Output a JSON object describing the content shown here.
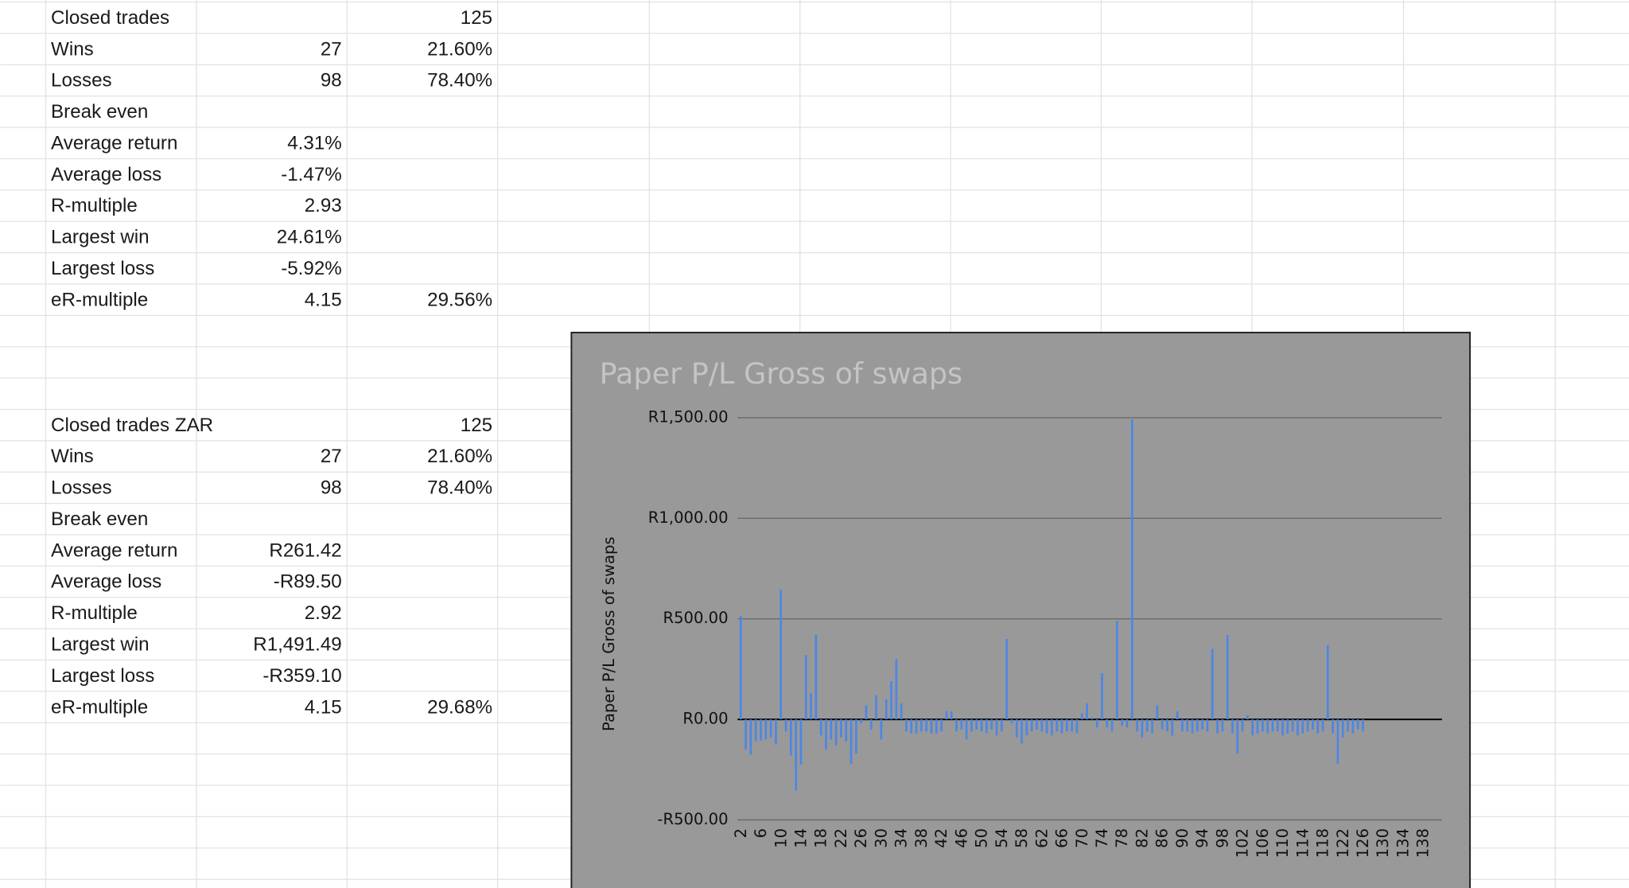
{
  "sheet": {
    "sections": [
      {
        "rows": [
          {
            "label": "Closed trades",
            "col_c": "125"
          },
          {
            "label": "Wins",
            "col_b": "27",
            "col_c": "21.60%"
          },
          {
            "label": "Losses",
            "col_b": "98",
            "col_c": "78.40%"
          },
          {
            "label": "Break even"
          },
          {
            "label": "Average return",
            "col_b": "4.31%"
          },
          {
            "label": "Average loss",
            "col_b": "-1.47%"
          },
          {
            "label": "R-multiple",
            "col_b": "2.93"
          },
          {
            "label": "Largest win",
            "col_b": "24.61%"
          },
          {
            "label": "Largest loss",
            "col_b": "-5.92%"
          },
          {
            "label": "eR-multiple",
            "col_b": "4.15",
            "col_c": "29.56%"
          }
        ]
      },
      {
        "rows": [
          {
            "label": "Closed trades ZAR",
            "col_c": "125"
          },
          {
            "label": "Wins",
            "col_b": "27",
            "col_c": "21.60%"
          },
          {
            "label": "Losses",
            "col_b": "98",
            "col_c": "78.40%"
          },
          {
            "label": "Break even"
          },
          {
            "label": "Average return",
            "col_b": "R261.42"
          },
          {
            "label": "Average loss",
            "col_b": "-R89.50"
          },
          {
            "label": "R-multiple",
            "col_b": "2.92"
          },
          {
            "label": "Largest win",
            "col_b": "R1,491.49"
          },
          {
            "label": "Largest loss",
            "col_b": "-R359.10"
          },
          {
            "label": "eR-multiple",
            "col_b": "4.15",
            "col_c": "29.68%"
          }
        ]
      }
    ]
  },
  "chart_data": {
    "type": "bar",
    "title": "Paper P/L Gross of swaps",
    "y_label": "Paper P/L Gross of swaps",
    "color": "#4a86e8",
    "plot_background": "#999999",
    "grid": true,
    "ylim": [
      -500,
      1500
    ],
    "yticks": [
      {
        "value": -500,
        "label": "-R500.00"
      },
      {
        "value": 0,
        "label": "R0.00"
      },
      {
        "value": 500,
        "label": "R500.00"
      },
      {
        "value": 1000,
        "label": "R1,000.00"
      },
      {
        "value": 1500,
        "label": "R1,500.00"
      }
    ],
    "categories": [
      "2",
      null,
      null,
      null,
      "6",
      null,
      null,
      null,
      "10",
      null,
      null,
      null,
      "14",
      null,
      null,
      null,
      "18",
      null,
      null,
      null,
      "22",
      null,
      null,
      null,
      "26",
      null,
      null,
      null,
      "30",
      null,
      null,
      null,
      "34",
      null,
      null,
      null,
      "38",
      null,
      null,
      null,
      "42",
      null,
      null,
      null,
      "46",
      null,
      null,
      null,
      "50",
      null,
      null,
      null,
      "54",
      null,
      null,
      null,
      "58",
      null,
      null,
      null,
      "62",
      null,
      null,
      null,
      "66",
      null,
      null,
      null,
      "70",
      null,
      null,
      null,
      "74",
      null,
      null,
      null,
      "78",
      null,
      null,
      null,
      "82",
      null,
      null,
      null,
      "86",
      null,
      null,
      null,
      "90",
      null,
      null,
      null,
      "94",
      null,
      null,
      null,
      "98",
      null,
      null,
      null,
      "102",
      null,
      null,
      null,
      "106",
      null,
      null,
      null,
      "110",
      null,
      null,
      null,
      "114",
      null,
      null,
      null,
      "118",
      null,
      null,
      null,
      "122",
      null,
      null,
      null,
      "126",
      null,
      null,
      null,
      "130",
      null,
      null,
      null,
      "134",
      null,
      null,
      null,
      "138",
      null
    ],
    "values": [
      515,
      -150,
      -175,
      -110,
      -105,
      -100,
      -90,
      -125,
      645,
      -60,
      -180,
      -355,
      -225,
      320,
      130,
      420,
      -80,
      -150,
      -100,
      -130,
      -90,
      -110,
      -220,
      -170,
      -20,
      70,
      -50,
      120,
      -100,
      100,
      190,
      300,
      80,
      -60,
      -70,
      -70,
      -60,
      -60,
      -70,
      -70,
      -60,
      40,
      40,
      -60,
      -50,
      -100,
      -60,
      -50,
      -60,
      -70,
      -50,
      -80,
      -60,
      400,
      -20,
      -90,
      -120,
      -80,
      -60,
      -50,
      -60,
      -70,
      -80,
      -60,
      -70,
      -60,
      -60,
      -70,
      30,
      80,
      10,
      -40,
      230,
      -40,
      -60,
      490,
      -30,
      -40,
      1491.49,
      -60,
      -90,
      -60,
      -70,
      70,
      -50,
      -60,
      -80,
      40,
      -60,
      -60,
      -70,
      -60,
      -50,
      -60,
      350,
      -70,
      -60,
      420,
      -70,
      -170,
      -60,
      20,
      -80,
      -70,
      -60,
      -70,
      -60,
      -60,
      -80,
      -70,
      -60,
      -80,
      -70,
      -60,
      -50,
      -70,
      -60,
      370,
      -70,
      -220,
      -90,
      -60,
      -70,
      -50,
      -60,
      null,
      null,
      null,
      null,
      null,
      null,
      null,
      null,
      null,
      null,
      null,
      null,
      null
    ]
  }
}
